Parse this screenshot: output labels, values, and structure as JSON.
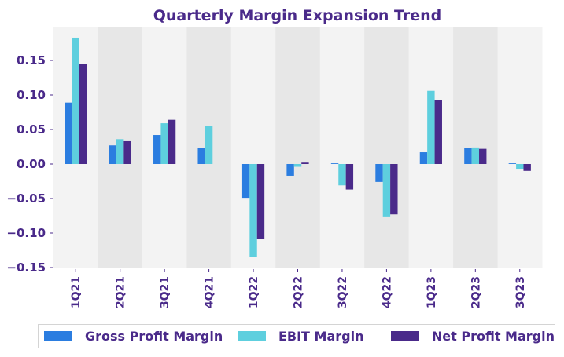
{
  "chart_data": {
    "type": "bar",
    "title": "Quarterly Margin Expansion Trend",
    "xlabel": "",
    "ylabel": "",
    "categories": [
      "1Q21",
      "2Q21",
      "3Q21",
      "4Q21",
      "1Q22",
      "2Q22",
      "3Q22",
      "4Q22",
      "1Q23",
      "2Q23",
      "3Q23"
    ],
    "series": [
      {
        "name": "Gross Profit Margin",
        "color": "#2b7de0",
        "values": [
          0.089,
          0.027,
          0.042,
          0.023,
          -0.049,
          -0.017,
          0.001,
          -0.026,
          0.017,
          0.023,
          0.001
        ]
      },
      {
        "name": "EBIT Margin",
        "color": "#5ecfde",
        "values": [
          0.183,
          0.036,
          0.059,
          0.055,
          -0.135,
          -0.004,
          -0.031,
          -0.076,
          0.106,
          0.024,
          -0.008
        ]
      },
      {
        "name": "Net Profit Margin",
        "color": "#4a2a8a",
        "values": [
          0.145,
          0.033,
          0.064,
          0.0,
          -0.108,
          0.002,
          -0.037,
          -0.073,
          0.093,
          0.022,
          -0.01
        ]
      }
    ],
    "yticks": [
      0.15,
      0.1,
      0.05,
      0.0,
      -0.05,
      -0.1,
      -0.15
    ],
    "ytick_labels": [
      "0.15",
      "0.10",
      "0.05",
      "0.00",
      "−0.05",
      "−0.10",
      "−0.15"
    ],
    "ylim": [
      -0.151,
      0.199
    ],
    "grid": false,
    "band_colors": [
      "#f3f3f3",
      "#e7e7e7"
    ],
    "text_color": "#4a2a8a",
    "legend_position": "bottom"
  }
}
